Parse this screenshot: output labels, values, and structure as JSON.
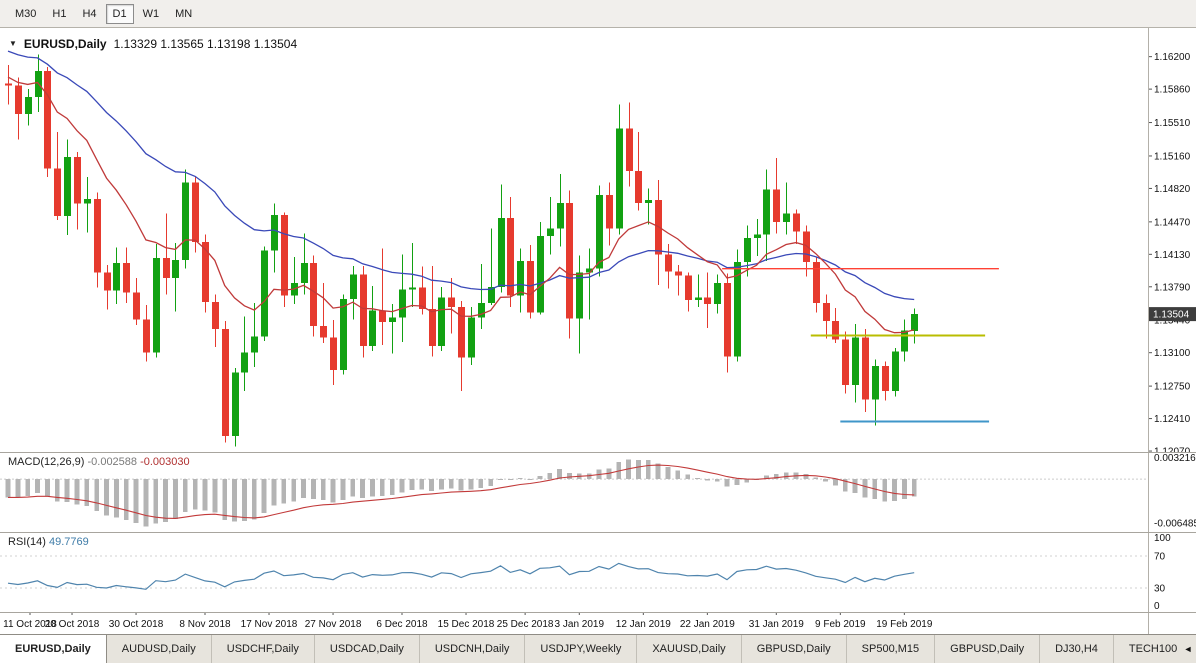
{
  "colors": {
    "up": "#12a112",
    "down": "#e63a2e",
    "ma_fast": "#c03a3a",
    "ma_slow": "#3a49b8",
    "macd_hist": "#b4b4b4",
    "macd_signal": "#c23a3a",
    "rsi_line": "#4f84ad",
    "badge_bg": "#3d3d3d",
    "badge_text": "#ffffff",
    "axis_text": "#111111",
    "level_red": "#ff4134",
    "level_yellow": "#b9bd00",
    "level_blue": "#3f96c9"
  },
  "toolbar": {
    "timeframes": [
      {
        "label": "M30",
        "active": false
      },
      {
        "label": "H1",
        "active": false
      },
      {
        "label": "H4",
        "active": false
      },
      {
        "label": "D1",
        "active": true
      },
      {
        "label": "W1",
        "active": false
      },
      {
        "label": "MN",
        "active": false
      }
    ]
  },
  "chart": {
    "symbol_title": "EURUSD,Daily",
    "ohlc_text": "1.13329 1.13565 1.13198 1.13504",
    "current_price": "1.13504",
    "dropdown_icon": "▼",
    "price_ticks": [
      "1.16200",
      "1.15860",
      "1.15510",
      "1.15160",
      "1.14820",
      "1.14470",
      "1.14130",
      "1.13790",
      "1.13440",
      "1.13100",
      "1.12750",
      "1.12410",
      "1.12070"
    ],
    "date_labels": [
      {
        "label": "11 Oct 2018",
        "i": 0
      },
      {
        "label": "20 Oct 2018",
        "i": 6.5
      },
      {
        "label": "30 Oct 2018",
        "i": 13
      },
      {
        "label": "8 Nov 2018",
        "i": 20
      },
      {
        "label": "17 Nov 2018",
        "i": 26.5
      },
      {
        "label": "27 Nov 2018",
        "i": 33
      },
      {
        "label": "6 Dec 2018",
        "i": 40
      },
      {
        "label": "15 Dec 2018",
        "i": 46.5
      },
      {
        "label": "25 Dec 2018",
        "i": 52.5
      },
      {
        "label": "3 Jan 2019",
        "i": 58
      },
      {
        "label": "12 Jan 2019",
        "i": 64.5
      },
      {
        "label": "22 Jan 2019",
        "i": 71
      },
      {
        "label": "31 Jan 2019",
        "i": 78
      },
      {
        "label": "9 Feb 2019",
        "i": 84.5
      },
      {
        "label": "19 Feb 2019",
        "i": 91
      }
    ]
  },
  "indicators": {
    "macd": {
      "label": "MACD(12,26,9)",
      "value_main": "-0.002588",
      "value_signal": "-0.003030",
      "axis_labels": [
        "0.003216",
        "-0.006485"
      ]
    },
    "rsi": {
      "label": "RSI(14)",
      "value": "49.7769",
      "axis_labels": [
        "100",
        "70",
        "30",
        "0"
      ],
      "level_lines": [
        70,
        30
      ]
    }
  },
  "tabs": [
    {
      "label": "EURUSD,Daily",
      "active": true
    },
    {
      "label": "AUDUSD,Daily",
      "active": false
    },
    {
      "label": "USDCHF,Daily",
      "active": false
    },
    {
      "label": "USDCAD,Daily",
      "active": false
    },
    {
      "label": "USDCNH,Daily",
      "active": false
    },
    {
      "label": "USDJPY,Weekly",
      "active": false
    },
    {
      "label": "XAUUSD,Daily",
      "active": false
    },
    {
      "label": "GBPUSD,Daily",
      "active": false
    },
    {
      "label": "SP500,M15",
      "active": false
    },
    {
      "label": "GBPUSD,Daily",
      "active": false
    },
    {
      "label": "DJ30,H4",
      "active": false
    },
    {
      "label": "TECH100",
      "active": false
    }
  ],
  "tabs_scroll_icon": "◄",
  "chart_data": {
    "type": "candlestick",
    "symbol": "EURUSD",
    "timeframe": "Daily",
    "x_first": "11 Oct 2018",
    "x_last": "20 Feb 2019",
    "y_range": [
      1.1206,
      1.165
    ],
    "last_quote": {
      "open": 1.13329,
      "high": 1.13565,
      "low": 1.13198,
      "close": 1.13504
    },
    "candles": [
      [
        1.1592,
        1.1611,
        1.157,
        1.159
      ],
      [
        1.159,
        1.1598,
        1.1533,
        1.156
      ],
      [
        1.156,
        1.1586,
        1.1548,
        1.1578
      ],
      [
        1.1578,
        1.1622,
        1.1562,
        1.1605
      ],
      [
        1.1605,
        1.1609,
        1.1494,
        1.1503
      ],
      [
        1.1503,
        1.1541,
        1.1449,
        1.1453
      ],
      [
        1.1453,
        1.1533,
        1.1433,
        1.1515
      ],
      [
        1.1515,
        1.152,
        1.1439,
        1.1466
      ],
      [
        1.1466,
        1.1494,
        1.1436,
        1.1471
      ],
      [
        1.1471,
        1.1478,
        1.1378,
        1.1394
      ],
      [
        1.1394,
        1.1402,
        1.1355,
        1.1375
      ],
      [
        1.1375,
        1.142,
        1.1361,
        1.1404
      ],
      [
        1.1404,
        1.142,
        1.1362,
        1.1373
      ],
      [
        1.1373,
        1.1388,
        1.1339,
        1.1345
      ],
      [
        1.1345,
        1.136,
        1.1301,
        1.131
      ],
      [
        1.131,
        1.1424,
        1.1305,
        1.1409
      ],
      [
        1.1409,
        1.1456,
        1.1371,
        1.1388
      ],
      [
        1.1388,
        1.1425,
        1.1353,
        1.1407
      ],
      [
        1.1407,
        1.1502,
        1.1398,
        1.1488
      ],
      [
        1.1488,
        1.1495,
        1.1415,
        1.1426
      ],
      [
        1.1426,
        1.1434,
        1.1352,
        1.1363
      ],
      [
        1.1363,
        1.1371,
        1.1316,
        1.1335
      ],
      [
        1.1335,
        1.1343,
        1.1216,
        1.1223
      ],
      [
        1.1223,
        1.1294,
        1.1212,
        1.1289
      ],
      [
        1.1289,
        1.1348,
        1.127,
        1.131
      ],
      [
        1.131,
        1.1362,
        1.1295,
        1.1327
      ],
      [
        1.1327,
        1.1421,
        1.1322,
        1.1417
      ],
      [
        1.1417,
        1.1466,
        1.1394,
        1.1454
      ],
      [
        1.1454,
        1.1457,
        1.1358,
        1.137
      ],
      [
        1.137,
        1.141,
        1.1361,
        1.1383
      ],
      [
        1.1383,
        1.1435,
        1.1371,
        1.1404
      ],
      [
        1.1404,
        1.1412,
        1.1327,
        1.1338
      ],
      [
        1.1338,
        1.1383,
        1.132,
        1.1326
      ],
      [
        1.1326,
        1.1344,
        1.1276,
        1.1292
      ],
      [
        1.1292,
        1.1371,
        1.1287,
        1.1366
      ],
      [
        1.1366,
        1.1401,
        1.1345,
        1.1392
      ],
      [
        1.1392,
        1.1401,
        1.1305,
        1.1317
      ],
      [
        1.1317,
        1.138,
        1.1312,
        1.1354
      ],
      [
        1.1354,
        1.1419,
        1.1318,
        1.1342
      ],
      [
        1.1342,
        1.1361,
        1.1309,
        1.1347
      ],
      [
        1.1347,
        1.1413,
        1.1321,
        1.1376
      ],
      [
        1.1376,
        1.1425,
        1.1358,
        1.1378
      ],
      [
        1.1378,
        1.14,
        1.135,
        1.1356
      ],
      [
        1.1356,
        1.1401,
        1.1306,
        1.1317
      ],
      [
        1.1317,
        1.1379,
        1.1312,
        1.1368
      ],
      [
        1.1368,
        1.1388,
        1.133,
        1.1358
      ],
      [
        1.1358,
        1.1364,
        1.127,
        1.1305
      ],
      [
        1.1305,
        1.1358,
        1.1297,
        1.1347
      ],
      [
        1.1347,
        1.1403,
        1.1335,
        1.1362
      ],
      [
        1.1362,
        1.144,
        1.136,
        1.1379
      ],
      [
        1.1379,
        1.1486,
        1.1373,
        1.1451
      ],
      [
        1.1451,
        1.1473,
        1.1358,
        1.137
      ],
      [
        1.137,
        1.1419,
        1.1352,
        1.1406
      ],
      [
        1.1406,
        1.1423,
        1.1346,
        1.1352
      ],
      [
        1.1352,
        1.1447,
        1.135,
        1.1432
      ],
      [
        1.1432,
        1.1473,
        1.1413,
        1.144
      ],
      [
        1.144,
        1.1497,
        1.1421,
        1.1467
      ],
      [
        1.1467,
        1.148,
        1.1325,
        1.1346
      ],
      [
        1.1346,
        1.1412,
        1.1309,
        1.1394
      ],
      [
        1.1394,
        1.1419,
        1.1345,
        1.1398
      ],
      [
        1.1398,
        1.1485,
        1.139,
        1.1475
      ],
      [
        1.1475,
        1.1488,
        1.1422,
        1.144
      ],
      [
        1.144,
        1.157,
        1.1434,
        1.1545
      ],
      [
        1.1545,
        1.1572,
        1.1484,
        1.15
      ],
      [
        1.15,
        1.1541,
        1.1459,
        1.1467
      ],
      [
        1.1467,
        1.1482,
        1.1444,
        1.147
      ],
      [
        1.147,
        1.1491,
        1.1381,
        1.1413
      ],
      [
        1.1413,
        1.1424,
        1.1377,
        1.1395
      ],
      [
        1.1395,
        1.1402,
        1.137,
        1.1391
      ],
      [
        1.1391,
        1.1394,
        1.1353,
        1.1365
      ],
      [
        1.1365,
        1.1392,
        1.1358,
        1.1368
      ],
      [
        1.1368,
        1.1394,
        1.1336,
        1.1361
      ],
      [
        1.1361,
        1.1392,
        1.1351,
        1.1383
      ],
      [
        1.1383,
        1.1393,
        1.1289,
        1.1306
      ],
      [
        1.1306,
        1.1418,
        1.1301,
        1.1405
      ],
      [
        1.1405,
        1.1443,
        1.139,
        1.143
      ],
      [
        1.143,
        1.145,
        1.1411,
        1.1434
      ],
      [
        1.1434,
        1.1502,
        1.1406,
        1.1481
      ],
      [
        1.1481,
        1.1514,
        1.1435,
        1.1447
      ],
      [
        1.1447,
        1.1488,
        1.1434,
        1.1456
      ],
      [
        1.1456,
        1.146,
        1.1424,
        1.1437
      ],
      [
        1.1437,
        1.1443,
        1.139,
        1.1405
      ],
      [
        1.1405,
        1.141,
        1.1352,
        1.1362
      ],
      [
        1.1362,
        1.1371,
        1.1325,
        1.1343
      ],
      [
        1.1343,
        1.1357,
        1.132,
        1.1324
      ],
      [
        1.1324,
        1.1332,
        1.1267,
        1.1276
      ],
      [
        1.1276,
        1.134,
        1.1258,
        1.1326
      ],
      [
        1.1326,
        1.1335,
        1.1248,
        1.1261
      ],
      [
        1.1261,
        1.1303,
        1.1234,
        1.1296
      ],
      [
        1.1296,
        1.1301,
        1.126,
        1.127
      ],
      [
        1.127,
        1.1315,
        1.1264,
        1.1311
      ],
      [
        1.1311,
        1.1345,
        1.1301,
        1.1333
      ],
      [
        1.13329,
        1.13565,
        1.13198,
        1.13504
      ]
    ],
    "ma": [
      {
        "name": "ma-slow-blue",
        "period": 34,
        "seed": 1.1628,
        "color": "#3a49b8"
      },
      {
        "name": "ma-fast-red",
        "period": 13,
        "seed": 1.16,
        "color": "#c03a3a"
      }
    ],
    "levels": [
      {
        "name": "horizontal-line-red",
        "color": "#ff4134",
        "price": 1.1398,
        "from_i": 72.5,
        "to_i": 100.6,
        "width": 1.4
      },
      {
        "name": "horizontal-line-yellow",
        "color": "#b9bd00",
        "price": 1.1328,
        "from_i": 81.5,
        "to_i": 99.2,
        "width": 2
      },
      {
        "name": "horizontal-line-blue",
        "color": "#3f96c9",
        "price": 1.1238,
        "from_i": 84.5,
        "to_i": 99.6,
        "width": 2
      }
    ],
    "macd_params": {
      "fast": 12,
      "slow": 26,
      "signal": 9,
      "seed_fast_offset": -0.001,
      "seed_slow_offset": 0.002,
      "scale_max": 0.004,
      "scale_min": -0.0078
    },
    "rsi_params": {
      "period": 14,
      "seed_gain": 0.0018,
      "seed_loss": 0.0032,
      "scale": [
        0,
        100
      ]
    }
  }
}
